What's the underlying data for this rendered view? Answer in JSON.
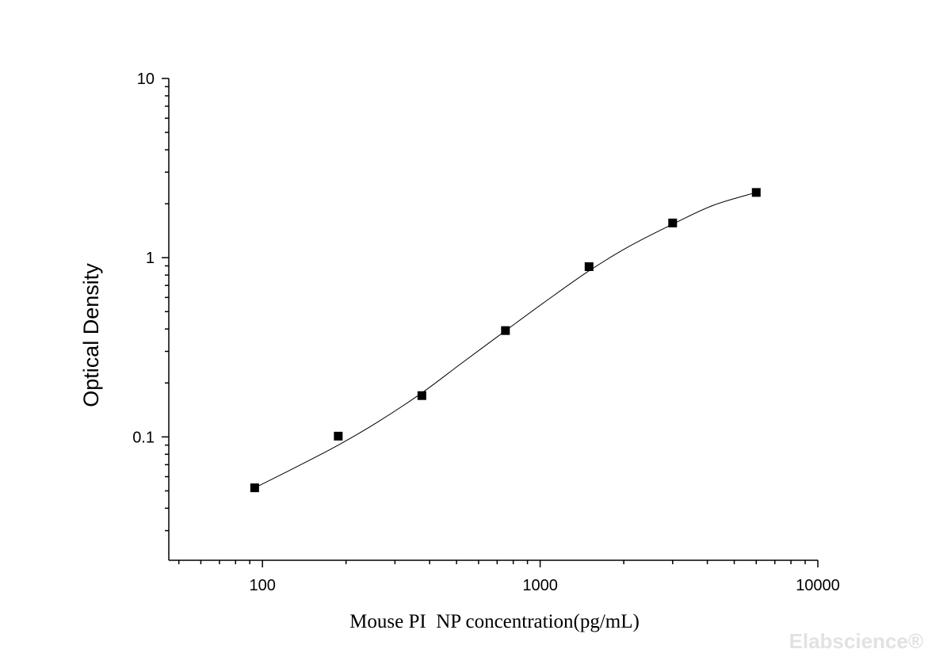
{
  "chart_data": {
    "type": "scatter",
    "xlabel": "Mouse PI  NP concentration(pg/mL)",
    "ylabel": "Optical Density",
    "xscale": "log",
    "yscale": "log",
    "xlim": [
      46,
      10000
    ],
    "ylim": [
      0.0205,
      10
    ],
    "x_ticks": [
      100,
      1000,
      10000
    ],
    "x_tick_labels": [
      "100",
      "1000",
      "10000"
    ],
    "y_ticks": [
      0.1,
      1,
      10
    ],
    "y_tick_labels": [
      "0.1",
      "1",
      "10"
    ],
    "grid": false,
    "series": [
      {
        "marker": "square",
        "color": "#000000",
        "x": [
          93.75,
          187.5,
          375,
          750,
          1500,
          3000,
          6000
        ],
        "y": [
          0.052,
          0.101,
          0.17,
          0.392,
          0.891,
          1.562,
          2.312
        ]
      }
    ],
    "fit_curve": {
      "color": "#000000",
      "x": [
        93.75,
        130,
        187.5,
        260,
        375,
        520,
        750,
        1050,
        1500,
        2100,
        3000,
        4200,
        6000
      ],
      "y": [
        0.052,
        0.067,
        0.09,
        0.121,
        0.176,
        0.257,
        0.391,
        0.573,
        0.845,
        1.16,
        1.538,
        1.96,
        2.312
      ]
    }
  },
  "watermark": "Elabscience®"
}
